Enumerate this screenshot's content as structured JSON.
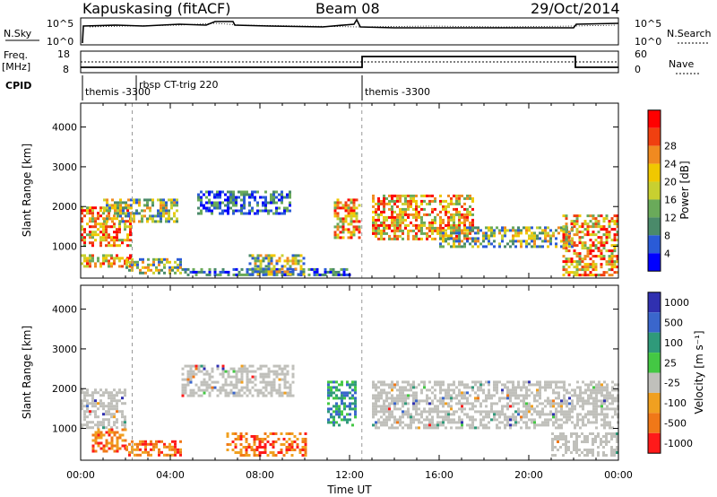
{
  "header": {
    "title_left": "Kapuskasing (fitACF)",
    "title_center": "Beam 08",
    "title_right": "29/Oct/2014"
  },
  "sky_panel": {
    "left_label": "N.Sky",
    "right_label": "N.Search",
    "ticks_left": [
      "10^5",
      "10^0"
    ],
    "ticks_right": [
      "10^5",
      "10^0"
    ]
  },
  "freq_panel": {
    "left_label_1": "Freq.",
    "left_label_2": "[MHz]",
    "right_label": "Nave",
    "ticks_left": [
      "18",
      "8"
    ],
    "ticks_right": [
      "60",
      "0"
    ]
  },
  "cpid": {
    "label": "CPID",
    "segments": [
      {
        "start_hour": 0.0,
        "name": "themis -3300"
      },
      {
        "start_hour": 2.3,
        "name": "rbsp CT-trig 220"
      },
      {
        "start_hour": 12.55,
        "name": "themis -3300"
      }
    ]
  },
  "colors": {
    "power_scale": [
      "#0000ff",
      "#2a5bd7",
      "#4a8a6a",
      "#6aaa5a",
      "#c8d030",
      "#f0c800",
      "#f08a20",
      "#f04010",
      "#ff0000"
    ],
    "velocity_scale": [
      "#3030b0",
      "#3a66cc",
      "#2f9a7a",
      "#44c844",
      "#c0c0bb",
      "#f0a020",
      "#f07818",
      "#ff1a1a"
    ],
    "ground_scatter": "#c0c0bb"
  },
  "chart_data": [
    {
      "type": "heatmap",
      "panel": "power",
      "ylabel": "Slant Range [km]",
      "xlabel": "",
      "x_range_hours": [
        0,
        24
      ],
      "xticks": [
        "00:00",
        "04:00",
        "08:00",
        "12:00",
        "16:00",
        "20:00",
        "00:00"
      ],
      "ylim": [
        200,
        4600
      ],
      "yticks": [
        1000,
        2000,
        3000,
        4000
      ],
      "colorbar_label": "Power [dB]",
      "colorbar_ticks": [
        "4",
        "8",
        "12",
        "16",
        "20",
        "24",
        "28"
      ],
      "bands": [
        {
          "t0": 0.0,
          "t1": 2.2,
          "r0": 1000,
          "r1": 2000,
          "level": "high"
        },
        {
          "t0": 0.0,
          "t1": 2.2,
          "r0": 500,
          "r1": 800,
          "level": "high"
        },
        {
          "t0": 1.0,
          "t1": 4.3,
          "r0": 1600,
          "r1": 2200,
          "level": "mid"
        },
        {
          "t0": 2.0,
          "t1": 4.5,
          "r0": 300,
          "r1": 700,
          "level": "mid"
        },
        {
          "t0": 5.2,
          "t1": 9.3,
          "r0": 1800,
          "r1": 2400,
          "level": "low"
        },
        {
          "t0": 4.5,
          "t1": 12.0,
          "r0": 250,
          "r1": 450,
          "level": "low"
        },
        {
          "t0": 7.5,
          "t1": 10.0,
          "r0": 300,
          "r1": 800,
          "level": "mid"
        },
        {
          "t0": 11.3,
          "t1": 12.4,
          "r0": 1200,
          "r1": 2200,
          "level": "high"
        },
        {
          "t0": 13.0,
          "t1": 17.5,
          "r0": 1200,
          "r1": 2300,
          "level": "high"
        },
        {
          "t0": 16.0,
          "t1": 22.0,
          "r0": 1000,
          "r1": 1500,
          "level": "mid"
        },
        {
          "t0": 21.5,
          "t1": 24.0,
          "r0": 300,
          "r1": 1800,
          "level": "high"
        }
      ]
    },
    {
      "type": "heatmap",
      "panel": "velocity",
      "ylabel": "Slant Range [km]",
      "xlabel": "Time UT",
      "x_range_hours": [
        0,
        24
      ],
      "xticks": [
        "00:00",
        "04:00",
        "08:00",
        "12:00",
        "16:00",
        "20:00",
        "00:00"
      ],
      "ylim": [
        200,
        4600
      ],
      "yticks": [
        1000,
        2000,
        3000,
        4000
      ],
      "colorbar_label": "Velocity [m s⁻¹]",
      "colorbar_ticks": [
        "1000",
        "500",
        "100",
        "25",
        "-25",
        "-100",
        "-500",
        "-1000"
      ],
      "bands": [
        {
          "t0": 0.0,
          "t1": 2.0,
          "r0": 1000,
          "r1": 2000,
          "kind": "gs"
        },
        {
          "t0": 0.5,
          "t1": 2.0,
          "r0": 400,
          "r1": 1000,
          "kind": "away"
        },
        {
          "t0": 2.0,
          "t1": 4.5,
          "r0": 300,
          "r1": 700,
          "kind": "away"
        },
        {
          "t0": 4.5,
          "t1": 9.5,
          "r0": 1800,
          "r1": 2600,
          "kind": "gs"
        },
        {
          "t0": 6.5,
          "t1": 10.0,
          "r0": 300,
          "r1": 900,
          "kind": "away"
        },
        {
          "t0": 11.0,
          "t1": 12.3,
          "r0": 1100,
          "r1": 2200,
          "kind": "toward"
        },
        {
          "t0": 13.0,
          "t1": 24.0,
          "r0": 1000,
          "r1": 2200,
          "kind": "gs"
        },
        {
          "t0": 21.0,
          "t1": 24.0,
          "r0": 300,
          "r1": 900,
          "kind": "gs"
        }
      ]
    }
  ]
}
